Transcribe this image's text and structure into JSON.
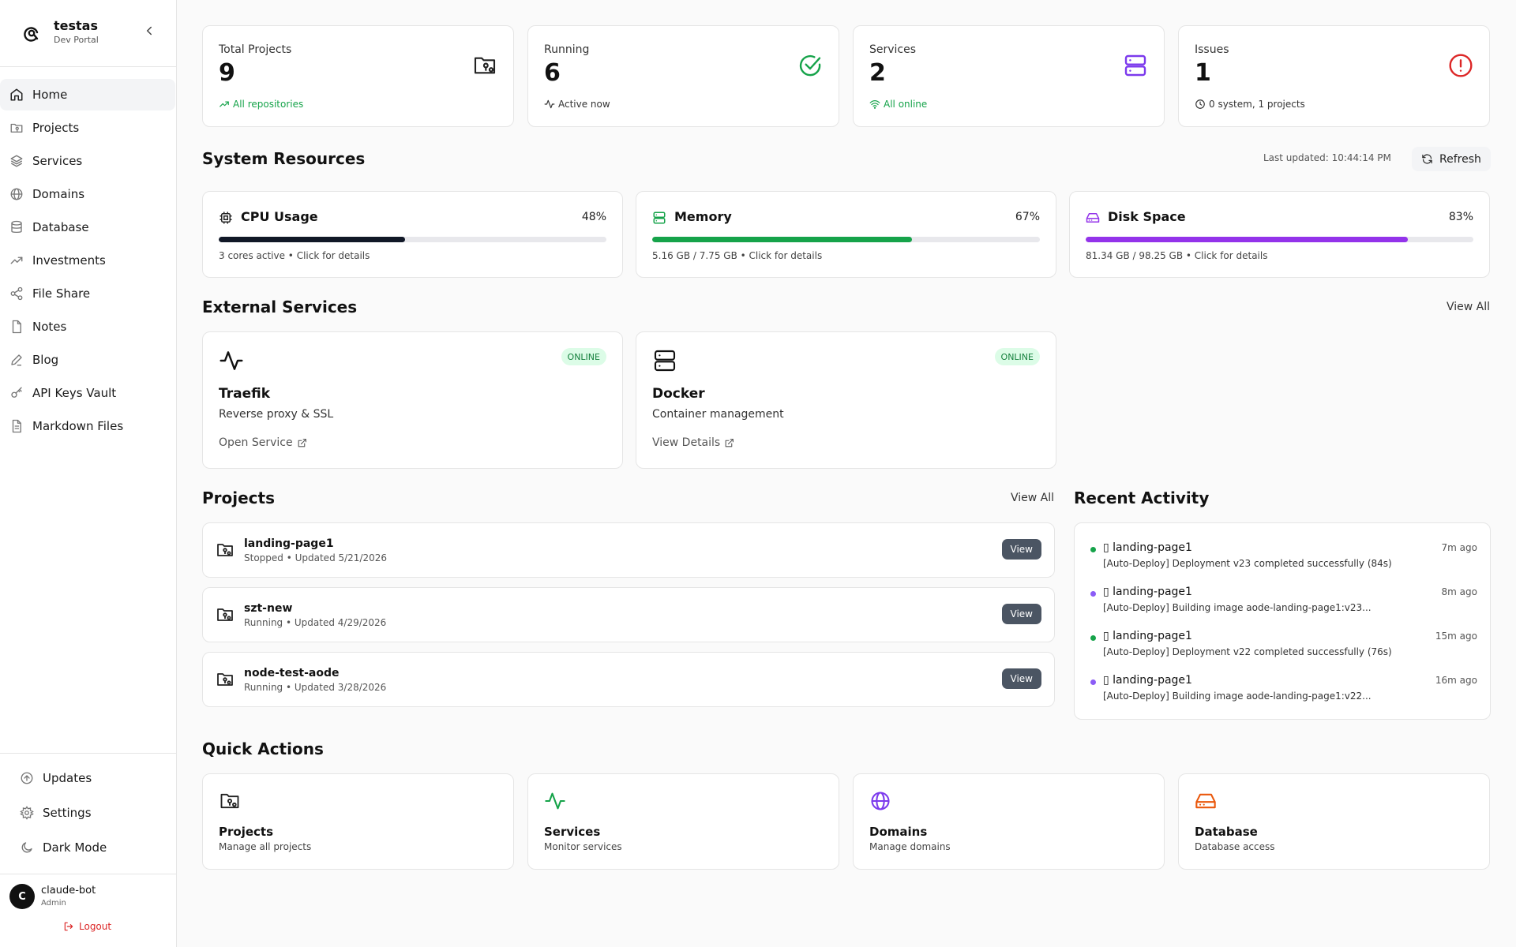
{
  "brand": {
    "name": "testas",
    "subtitle": "Dev Portal"
  },
  "nav": [
    {
      "label": "Home",
      "icon": "home-icon",
      "active": true
    },
    {
      "label": "Projects",
      "icon": "folder-git-icon"
    },
    {
      "label": "Services",
      "icon": "layers-icon"
    },
    {
      "label": "Domains",
      "icon": "globe-icon"
    },
    {
      "label": "Database",
      "icon": "database-icon"
    },
    {
      "label": "Investments",
      "icon": "trending-up-icon"
    },
    {
      "label": "File Share",
      "icon": "share-icon"
    },
    {
      "label": "Notes",
      "icon": "file-icon"
    },
    {
      "label": "Blog",
      "icon": "pen-icon"
    },
    {
      "label": "API Keys Vault",
      "icon": "key-icon"
    },
    {
      "label": "Markdown Files",
      "icon": "file-text-icon"
    }
  ],
  "sidebar_bottom": {
    "updates": "Updates",
    "settings": "Settings",
    "dark_mode": "Dark Mode"
  },
  "user": {
    "initial": "C",
    "name": "claude-bot",
    "role": "Admin",
    "logout": "Logout"
  },
  "stats": [
    {
      "label": "Total Projects",
      "value": "9",
      "foot": "All repositories",
      "foot_color": "#16a34a",
      "icon": "folder-git-icon"
    },
    {
      "label": "Running",
      "value": "6",
      "foot": "Active now",
      "foot_color": "#333333",
      "icon": "check-circle-icon"
    },
    {
      "label": "Services",
      "value": "2",
      "foot": "All online",
      "foot_color": "#16a34a",
      "icon": "server-icon"
    },
    {
      "label": "Issues",
      "value": "1",
      "foot": "0 system, 1 projects",
      "foot_color": "#333333",
      "icon": "alert-circle-icon"
    }
  ],
  "resources": {
    "title": "System Resources",
    "last_updated": "Last updated: 10:44:14 PM",
    "refresh": "Refresh",
    "items": [
      {
        "title": "CPU Usage",
        "percent_label": "48%",
        "percent": 48,
        "detail": "3 cores active • Click for details",
        "color": "#111827"
      },
      {
        "title": "Memory",
        "percent_label": "67%",
        "percent": 67,
        "detail": "5.16 GB / 7.75 GB • Click for details",
        "color": "#16a34a"
      },
      {
        "title": "Disk Space",
        "percent_label": "83%",
        "percent": 83,
        "detail": "81.34 GB / 98.25 GB • Click for details",
        "color": "#9333ea"
      }
    ]
  },
  "external": {
    "title": "External Services",
    "view_all": "View All",
    "items": [
      {
        "name": "Traefik",
        "desc": "Reverse proxy & SSL",
        "status": "ONLINE",
        "action": "Open Service"
      },
      {
        "name": "Docker",
        "desc": "Container management",
        "status": "ONLINE",
        "action": "View Details"
      }
    ]
  },
  "projects": {
    "title": "Projects",
    "view_all": "View All",
    "items": [
      {
        "name": "landing-page1",
        "meta": "Stopped • Updated 5/21/2026",
        "action": "View"
      },
      {
        "name": "szt-new",
        "meta": "Running • Updated 4/29/2026",
        "action": "View"
      },
      {
        "name": "node-test-aode",
        "meta": "Running • Updated 3/28/2026",
        "action": "View"
      }
    ]
  },
  "activity": {
    "title": "Recent Activity",
    "items": [
      {
        "who": "▯ landing-page1",
        "when": "7m ago",
        "msg": "[Auto-Deploy] Deployment v23 completed successfully (84s)",
        "dot": "#16a34a"
      },
      {
        "who": "▯ landing-page1",
        "when": "8m ago",
        "msg": "[Auto-Deploy] Building image aode-landing-page1:v23...",
        "dot": "#8b5cf6"
      },
      {
        "who": "▯ landing-page1",
        "when": "15m ago",
        "msg": "[Auto-Deploy] Deployment v22 completed successfully (76s)",
        "dot": "#16a34a"
      },
      {
        "who": "▯ landing-page1",
        "when": "16m ago",
        "msg": "[Auto-Deploy] Building image aode-landing-page1:v22...",
        "dot": "#8b5cf6"
      }
    ]
  },
  "quick_actions": {
    "title": "Quick Actions",
    "items": [
      {
        "title": "Projects",
        "desc": "Manage all projects",
        "icon": "folder-git-icon"
      },
      {
        "title": "Services",
        "desc": "Monitor services",
        "icon": "activity-icon"
      },
      {
        "title": "Domains",
        "desc": "Manage domains",
        "icon": "globe-icon"
      },
      {
        "title": "Database",
        "desc": "Database access",
        "icon": "hard-drive-icon"
      }
    ]
  }
}
